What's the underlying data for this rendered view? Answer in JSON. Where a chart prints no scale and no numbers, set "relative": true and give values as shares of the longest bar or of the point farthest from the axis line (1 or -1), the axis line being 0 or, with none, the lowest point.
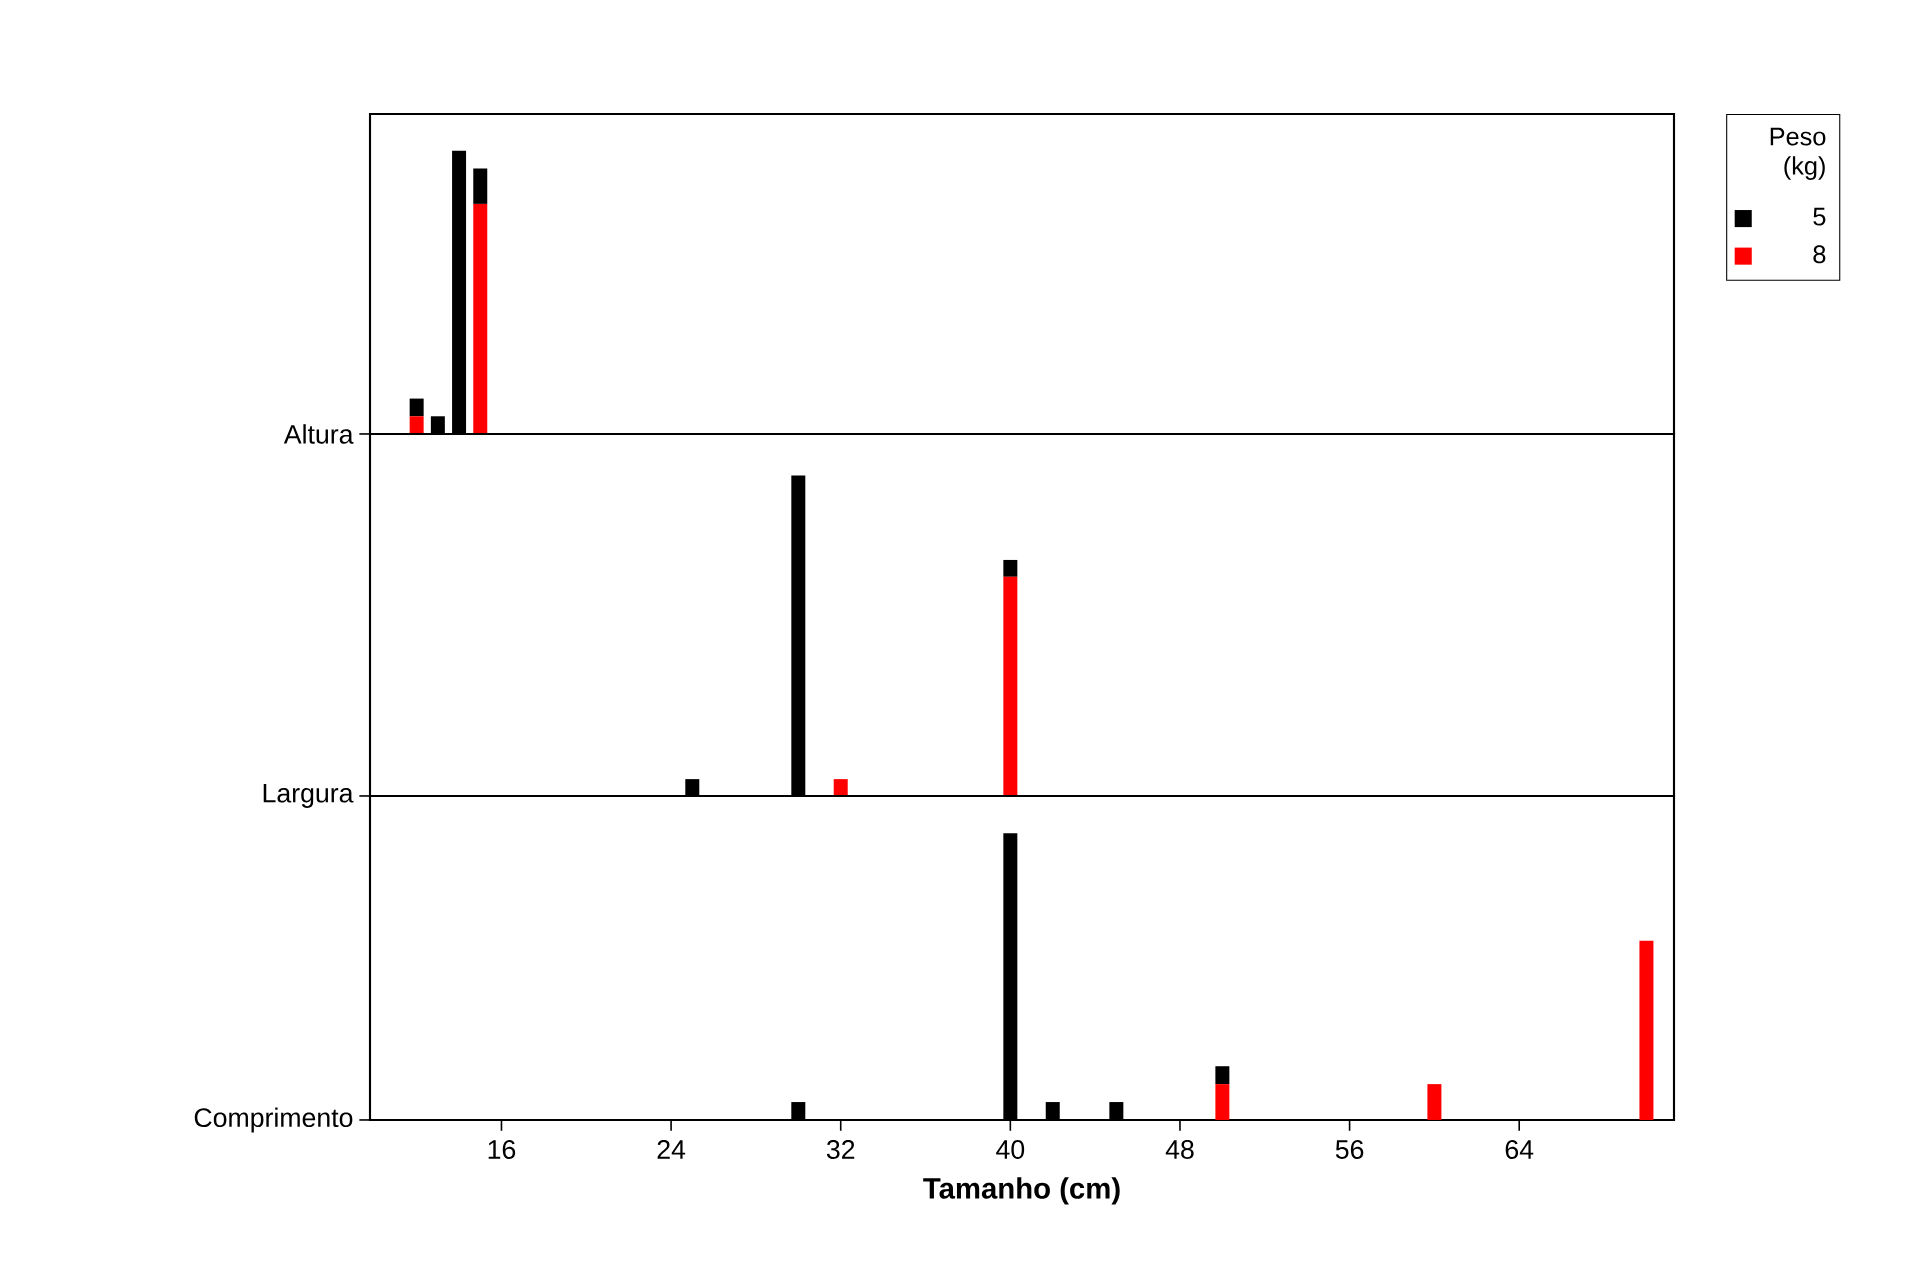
{
  "chart_data": [
    {
      "type": "bar",
      "stacked": true,
      "relative": true,
      "x": [
        12,
        13,
        14,
        15
      ],
      "xlim": [
        9.8,
        71.3
      ],
      "tick_labels": false,
      "annotations": [
        "Altura"
      ],
      "legend": "top right",
      "legend_title": "Peso (kg)",
      "series": [
        {
          "name": "8",
          "color": "#ff0000",
          "values": [
            0.0625,
            null,
            null,
            0.8125
          ]
        },
        {
          "name": "5",
          "color": "#000000",
          "values": [
            0.0625,
            0.0625,
            1,
            0.125
          ]
        }
      ]
    },
    {
      "type": "bar",
      "stacked": true,
      "relative": true,
      "x": [
        25,
        30,
        32,
        40
      ],
      "xlim": [
        9.8,
        71.3
      ],
      "tick_labels": false,
      "annotations": [
        "Largura"
      ],
      "series": [
        {
          "color": "#ff0000",
          "values": [
            null,
            null,
            0.0526,
            0.6842
          ]
        },
        {
          "color": "#000000",
          "values": [
            0.0526,
            1,
            null,
            0.0526
          ]
        }
      ]
    },
    {
      "type": "bar",
      "stacked": true,
      "relative": true,
      "x": [
        30,
        40,
        42,
        45,
        50,
        60,
        70
      ],
      "xlim": [
        9.8,
        71.3
      ],
      "tick_labels": "x",
      "annotations": [
        "Comprimento"
      ],
      "xticks": [
        16,
        24,
        32,
        40,
        48,
        56,
        64
      ],
      "xlabel": "Tamanho (cm)",
      "series": [
        {
          "color": "#ff0000",
          "values": [
            null,
            null,
            null,
            null,
            0.125,
            0.125,
            0.625
          ]
        },
        {
          "color": "#000000",
          "values": [
            0.0625,
            1,
            0.0625,
            0.0625,
            0.0625,
            null,
            null
          ]
        }
      ]
    }
  ]
}
